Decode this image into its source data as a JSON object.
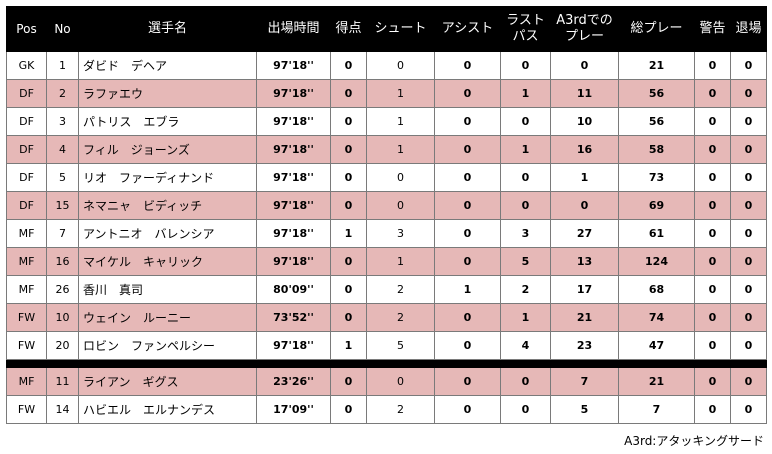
{
  "headers": {
    "pos": "Pos",
    "no": "No",
    "name": "選手名",
    "time": "出場時間",
    "goals": "得点",
    "shots": "シュート",
    "assists": "アシスト",
    "last_pass_1": "ラスト",
    "last_pass_2": "パス",
    "a3rd_1": "A3rdでの",
    "a3rd_2": "プレー",
    "total": "総プレー",
    "warn": "警告",
    "exit": "退場"
  },
  "starters": [
    {
      "pos": "GK",
      "no": "1",
      "name": "ダビド　デヘア",
      "time": "97'18''",
      "goals": "0",
      "shots": "0",
      "assists": "0",
      "last_pass": "0",
      "a3rd": "0",
      "total": "21",
      "warn": "0",
      "exit": "0"
    },
    {
      "pos": "DF",
      "no": "2",
      "name": "ラファエウ",
      "time": "97'18''",
      "goals": "0",
      "shots": "1",
      "assists": "0",
      "last_pass": "1",
      "a3rd": "11",
      "total": "56",
      "warn": "0",
      "exit": "0"
    },
    {
      "pos": "DF",
      "no": "3",
      "name": "パトリス　エブラ",
      "time": "97'18''",
      "goals": "0",
      "shots": "1",
      "assists": "0",
      "last_pass": "0",
      "a3rd": "10",
      "total": "56",
      "warn": "0",
      "exit": "0"
    },
    {
      "pos": "DF",
      "no": "4",
      "name": "フィル　ジョーンズ",
      "time": "97'18''",
      "goals": "0",
      "shots": "1",
      "assists": "0",
      "last_pass": "1",
      "a3rd": "16",
      "total": "58",
      "warn": "0",
      "exit": "0"
    },
    {
      "pos": "DF",
      "no": "5",
      "name": "リオ　ファーディナンド",
      "time": "97'18''",
      "goals": "0",
      "shots": "0",
      "assists": "0",
      "last_pass": "0",
      "a3rd": "1",
      "total": "73",
      "warn": "0",
      "exit": "0"
    },
    {
      "pos": "DF",
      "no": "15",
      "name": "ネマニャ　ビディッチ",
      "time": "97'18''",
      "goals": "0",
      "shots": "0",
      "assists": "0",
      "last_pass": "0",
      "a3rd": "0",
      "total": "69",
      "warn": "0",
      "exit": "0"
    },
    {
      "pos": "MF",
      "no": "7",
      "name": "アントニオ　バレンシア",
      "time": "97'18''",
      "goals": "1",
      "shots": "3",
      "assists": "0",
      "last_pass": "3",
      "a3rd": "27",
      "total": "61",
      "warn": "0",
      "exit": "0"
    },
    {
      "pos": "MF",
      "no": "16",
      "name": "マイケル　キャリック",
      "time": "97'18''",
      "goals": "0",
      "shots": "1",
      "assists": "0",
      "last_pass": "5",
      "a3rd": "13",
      "total": "124",
      "warn": "0",
      "exit": "0"
    },
    {
      "pos": "MF",
      "no": "26",
      "name": "香川　真司",
      "time": "80'09''",
      "goals": "0",
      "shots": "2",
      "assists": "1",
      "last_pass": "2",
      "a3rd": "17",
      "total": "68",
      "warn": "0",
      "exit": "0"
    },
    {
      "pos": "FW",
      "no": "10",
      "name": "ウェイン　ルーニー",
      "time": "73'52''",
      "goals": "0",
      "shots": "2",
      "assists": "0",
      "last_pass": "1",
      "a3rd": "21",
      "total": "74",
      "warn": "0",
      "exit": "0"
    },
    {
      "pos": "FW",
      "no": "20",
      "name": "ロビン　ファンペルシー",
      "time": "97'18''",
      "goals": "1",
      "shots": "5",
      "assists": "0",
      "last_pass": "4",
      "a3rd": "23",
      "total": "47",
      "warn": "0",
      "exit": "0"
    }
  ],
  "subs": [
    {
      "pos": "MF",
      "no": "11",
      "name": "ライアン　ギグス",
      "time": "23'26''",
      "goals": "0",
      "shots": "0",
      "assists": "0",
      "last_pass": "0",
      "a3rd": "7",
      "total": "21",
      "warn": "0",
      "exit": "0"
    },
    {
      "pos": "FW",
      "no": "14",
      "name": "ハビエル　エルナンデス",
      "time": "17'09''",
      "goals": "0",
      "shots": "2",
      "assists": "0",
      "last_pass": "0",
      "a3rd": "5",
      "total": "7",
      "warn": "0",
      "exit": "0"
    }
  ],
  "footnote": "A3rd:アタッキングサード",
  "colors": {
    "header_bg": "#000000",
    "stripe": "#e6b8b7"
  }
}
